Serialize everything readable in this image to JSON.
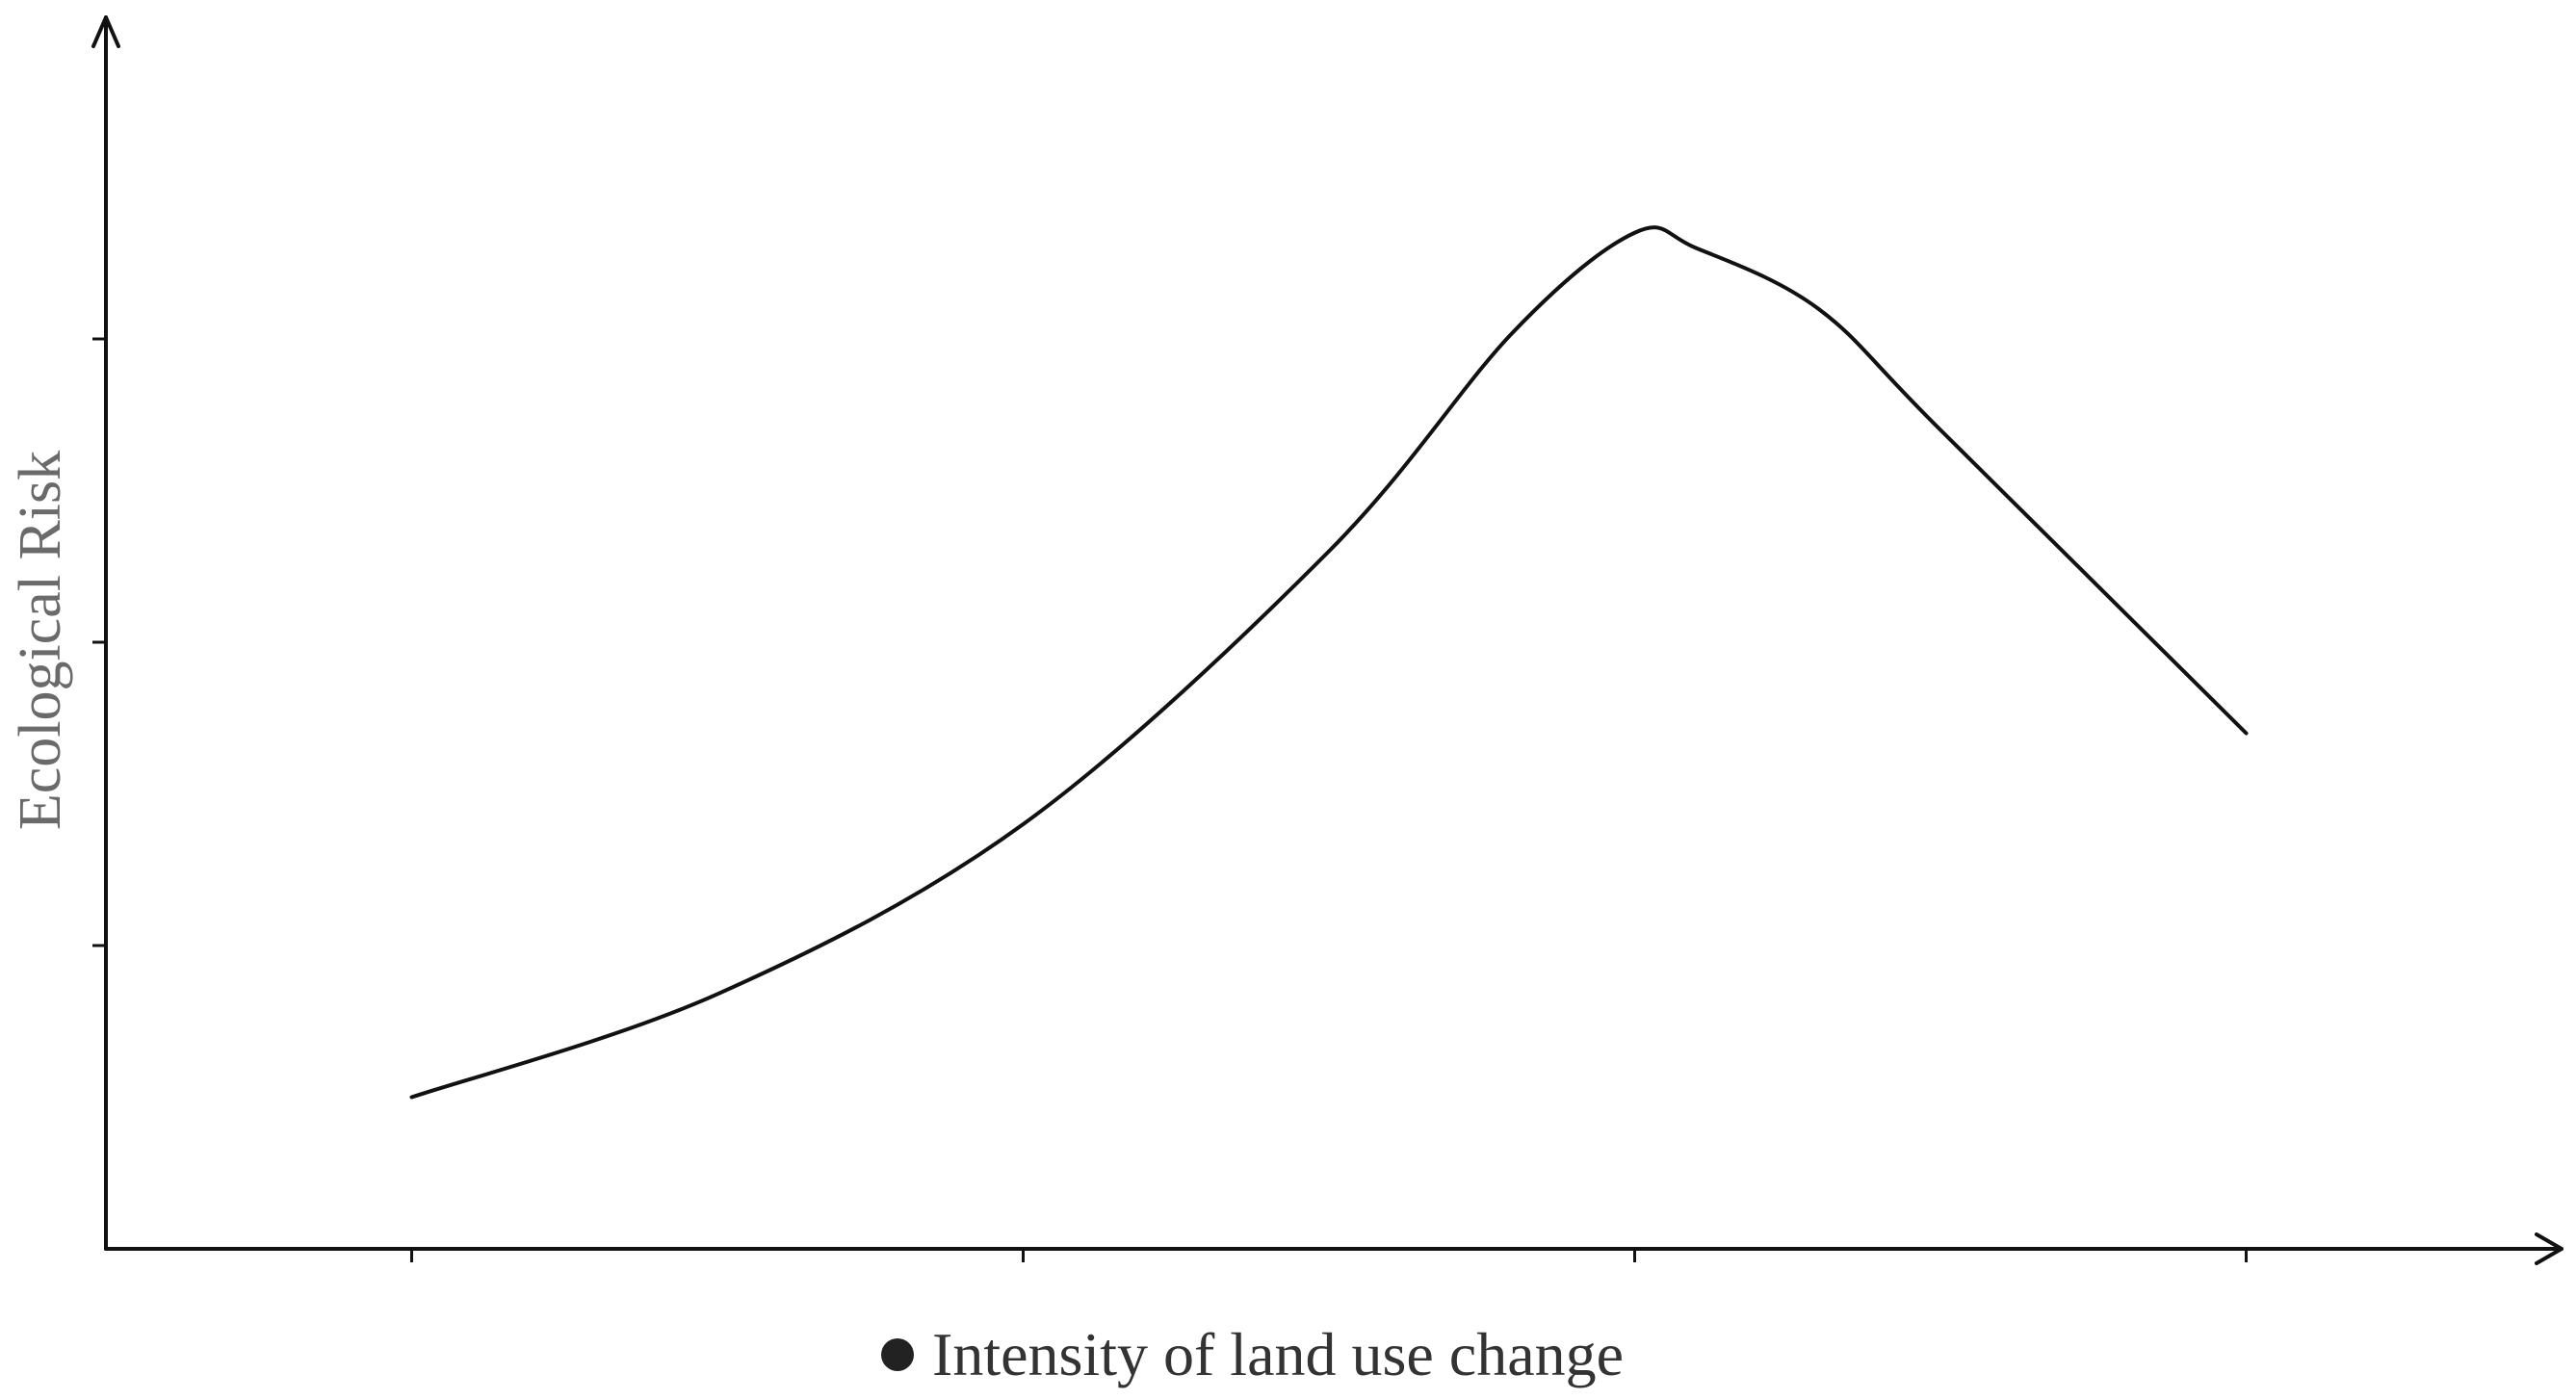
{
  "chart_data": {
    "type": "line",
    "title": "",
    "xlabel": "Intensity of land use change",
    "ylabel": "Ecological Risk",
    "legend_marker": "bullet",
    "x_ticks": 4,
    "y_ticks": 3,
    "xlim": [
      0,
      4
    ],
    "ylim": [
      0,
      4
    ],
    "grid": false,
    "series": [
      {
        "color": "#111111",
        "x": [
          0.5,
          1.0,
          1.5,
          2.0,
          2.3,
          2.5,
          2.6,
          2.8,
          3.0,
          3.5
        ],
        "y": [
          0.5,
          0.84,
          1.4,
          2.3,
          3.02,
          3.35,
          3.3,
          3.1,
          2.7,
          1.7
        ]
      }
    ]
  }
}
